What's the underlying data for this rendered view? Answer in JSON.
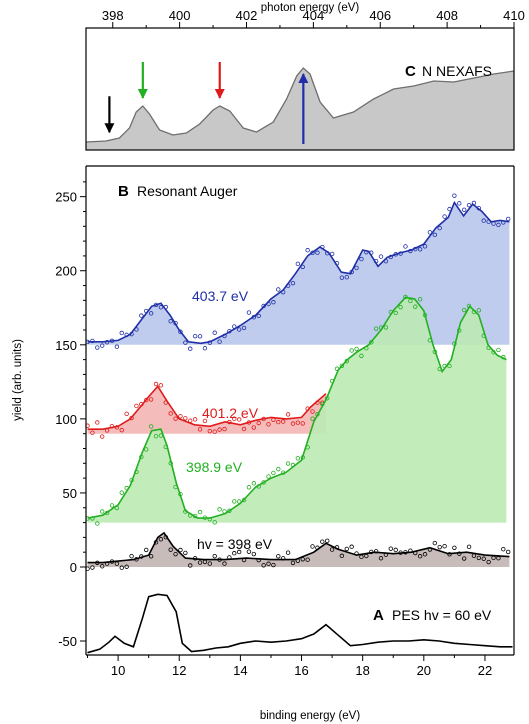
{
  "figure": {
    "top_axis_label": "photon energy (eV)",
    "bottom_axis_label": "binding energy (eV)",
    "y_axis_label": "yield (arb. units)"
  },
  "chart_data": [
    {
      "type": "area",
      "panel": "C",
      "panel_letter": "C",
      "title": "N NEXAFS",
      "xlabel": "photon energy (eV)",
      "xlim": [
        397.2,
        410
      ],
      "xticks": [
        398,
        400,
        402,
        404,
        406,
        408,
        410
      ],
      "ylim": [
        0,
        1
      ],
      "fill_color": "#c8c8c8",
      "line_color": "#6e6e6e",
      "x": [
        397.2,
        397.8,
        398.2,
        398.5,
        398.7,
        398.9,
        399.1,
        399.4,
        399.8,
        400.2,
        400.6,
        401.0,
        401.2,
        401.5,
        401.9,
        402.3,
        402.8,
        403.2,
        403.5,
        403.7,
        403.9,
        404.2,
        404.6,
        405.2,
        405.8,
        406.4,
        407.0,
        407.6,
        408.2,
        408.8,
        409.4,
        410.0
      ],
      "y": [
        0.02,
        0.03,
        0.06,
        0.16,
        0.32,
        0.38,
        0.3,
        0.14,
        0.09,
        0.11,
        0.2,
        0.34,
        0.38,
        0.33,
        0.16,
        0.12,
        0.22,
        0.45,
        0.68,
        0.76,
        0.7,
        0.42,
        0.26,
        0.32,
        0.45,
        0.55,
        0.58,
        0.63,
        0.62,
        0.66,
        0.7,
        0.73
      ],
      "markers": [
        {
          "x": 397.9,
          "color": "#000000",
          "direction": "down"
        },
        {
          "x": 398.9,
          "color": "#22b022",
          "direction": "down"
        },
        {
          "x": 401.2,
          "color": "#e01b1b",
          "direction": "down"
        },
        {
          "x": 403.7,
          "color": "#1f2fa8",
          "direction": "up"
        }
      ]
    },
    {
      "type": "line",
      "panel": "B",
      "panel_letter": "B",
      "title": "Resonant Auger",
      "xlim": [
        8.95,
        22.95
      ],
      "ylim": [
        0,
        268
      ],
      "yticks": [
        0,
        50,
        100,
        150,
        200,
        250
      ],
      "series": [
        {
          "name": "403.7 eV",
          "color": "#1f2fa8",
          "fill": "#b9c6ec",
          "baseline": 150,
          "x": [
            9,
            9.5,
            10,
            10.4,
            10.8,
            11.1,
            11.4,
            11.7,
            12.0,
            12.3,
            12.7,
            13.0,
            13.5,
            14.0,
            14.5,
            15.0,
            15.4,
            15.8,
            16.2,
            16.6,
            16.9,
            17.3,
            17.6,
            18.0,
            18.2,
            18.5,
            18.8,
            19.2,
            19.6,
            20.0,
            20.4,
            20.8,
            21.0,
            21.3,
            21.6,
            21.9,
            22.2,
            22.5,
            22.8
          ],
          "y": [
            152,
            152,
            153,
            157,
            168,
            176,
            178,
            170,
            160,
            152,
            151,
            152,
            157,
            163,
            170,
            181,
            187,
            198,
            210,
            216,
            212,
            199,
            198,
            214,
            213,
            203,
            209,
            212,
            214,
            218,
            229,
            236,
            246,
            237,
            245,
            240,
            233,
            234,
            233
          ]
        },
        {
          "name": "401.2 eV",
          "color": "#e01b1b",
          "fill": "#f4b5b5",
          "baseline": 90,
          "x": [
            9,
            9.5,
            10,
            10.4,
            10.8,
            11.0,
            11.3,
            11.6,
            12.0,
            12.5,
            13.0,
            13.5,
            14.0,
            14.5,
            15.0,
            15.5,
            16.0,
            16.3,
            16.8
          ],
          "y": [
            93,
            93,
            95,
            100,
            110,
            115,
            122,
            112,
            100,
            96,
            95,
            98,
            96,
            99,
            101,
            100,
            101,
            108,
            117
          ]
        },
        {
          "name": "398.9 eV",
          "color": "#22b022",
          "fill": "#bdeab4",
          "baseline": 30,
          "x": [
            9,
            9.5,
            10,
            10.4,
            10.8,
            11.1,
            11.4,
            11.6,
            11.9,
            12.2,
            12.6,
            13.0,
            13.5,
            14.0,
            14.5,
            15.0,
            15.5,
            16.0,
            16.4,
            16.8,
            17.2,
            17.5,
            17.8,
            18.2,
            18.6,
            19.0,
            19.4,
            19.7,
            20.0,
            20.3,
            20.6,
            20.9,
            21.2,
            21.5,
            21.8,
            22.1,
            22.4,
            22.7
          ],
          "y": [
            33,
            35,
            42,
            55,
            78,
            92,
            93,
            82,
            57,
            38,
            33,
            33,
            36,
            43,
            54,
            60,
            64,
            72,
            98,
            113,
            133,
            140,
            145,
            150,
            160,
            173,
            182,
            181,
            173,
            150,
            132,
            140,
            165,
            176,
            170,
            150,
            143,
            140
          ]
        }
      ]
    },
    {
      "type": "line",
      "panel": "B",
      "series": [
        {
          "name": "hv = 398 eV",
          "color": "#000000",
          "fill": "#c2b5b2",
          "baseline": 0,
          "x": [
            9,
            9.5,
            10,
            10.5,
            11.0,
            11.3,
            11.5,
            11.8,
            12.2,
            12.8,
            13.5,
            14.2,
            15.0,
            15.8,
            16.4,
            16.8,
            17.2,
            17.8,
            18.4,
            19.0,
            19.6,
            20.2,
            20.8,
            21.4,
            22.0,
            22.8
          ],
          "y": [
            3,
            3,
            4,
            5,
            8,
            20,
            23,
            14,
            6,
            5,
            5,
            6,
            5,
            5,
            10,
            16,
            12,
            8,
            10,
            9,
            10,
            13,
            9,
            10,
            8,
            7
          ]
        }
      ]
    },
    {
      "type": "line",
      "panel": "A",
      "panel_letter": "A",
      "title": "PES hv = 60 eV",
      "xlabel": "binding energy (eV)",
      "xlim": [
        8.95,
        22.95
      ],
      "xticks": [
        10,
        12,
        14,
        16,
        18,
        20,
        22
      ],
      "yticks": [
        -50
      ],
      "ylim": [
        -62,
        -2
      ],
      "series": [
        {
          "color": "#000000",
          "x": [
            9.0,
            9.4,
            9.7,
            9.9,
            10.2,
            10.5,
            10.8,
            11.0,
            11.3,
            11.6,
            11.9,
            12.1,
            12.4,
            12.8,
            13.2,
            13.6,
            14.0,
            14.5,
            15.0,
            15.5,
            16.0,
            16.4,
            16.8,
            17.2,
            17.6,
            18.0,
            18.5,
            19.0,
            19.5,
            20.0,
            20.5,
            21.0,
            21.5,
            22.0,
            22.5,
            22.9
          ],
          "y": [
            -60,
            -57,
            -51,
            -46,
            -52,
            -55,
            -30,
            -12,
            -10,
            -11,
            -25,
            -52,
            -59,
            -58,
            -56,
            -55,
            -52,
            -50,
            -51,
            -50,
            -48,
            -44,
            -36,
            -45,
            -54,
            -53,
            -51,
            -50,
            -50,
            -49,
            -50,
            -52,
            -53,
            -54,
            -55,
            -55
          ]
        }
      ]
    }
  ]
}
